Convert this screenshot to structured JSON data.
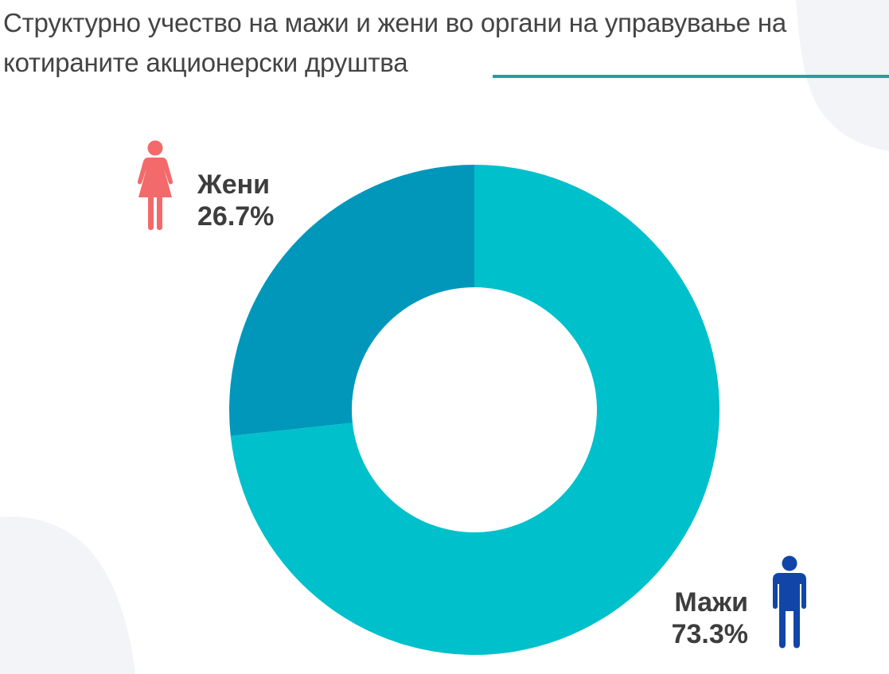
{
  "chart_data": {
    "type": "pie",
    "style": "donut",
    "title": "Структурно учество на мажи и жени во органи на управување на котираните акционерски друштва",
    "slices": [
      {
        "name": "Жени",
        "value": 26.7,
        "label": "26.7%",
        "color": "#0097bb"
      },
      {
        "name": "Мажи",
        "value": 73.3,
        "label": "73.3%",
        "color": "#00c0cb"
      }
    ],
    "start_angle_deg": 0,
    "direction": "counterclockwise",
    "legend": "none",
    "icons": {
      "women": "woman-icon",
      "men": "man-icon"
    }
  },
  "colors": {
    "title_text": "#444444",
    "title_underline": "#1aa3a8",
    "label_text": "#3d3d3d",
    "woman_icon": "#f26a6a",
    "man_icon": "#1146a8",
    "background_blob": "#f2f4f8"
  }
}
